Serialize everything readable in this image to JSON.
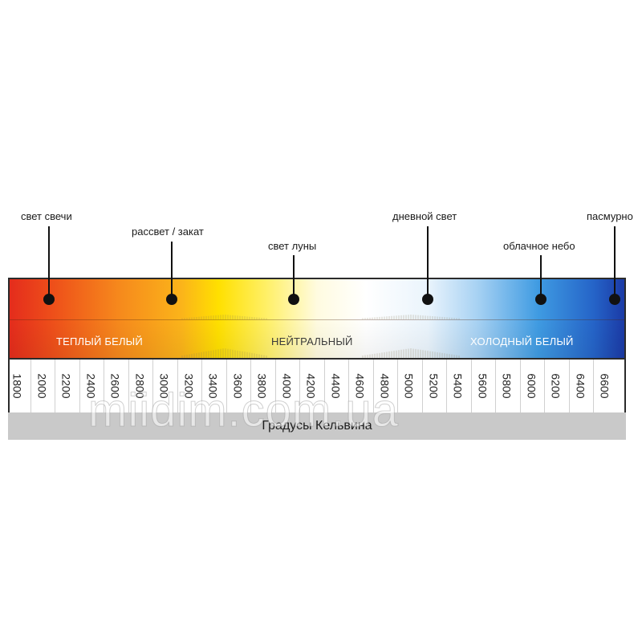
{
  "callouts": [
    {
      "id": "candle",
      "label": "свет свечи"
    },
    {
      "id": "sunrise",
      "label": "рассвет / закат"
    },
    {
      "id": "moon",
      "label": "свет луны"
    },
    {
      "id": "daylight",
      "label": "дневной свет"
    },
    {
      "id": "cloudy",
      "label": "облачное небо"
    },
    {
      "id": "overcast",
      "label": "пасмурно"
    }
  ],
  "zones": {
    "warm": "ТЕПЛЫЙ БЕЛЫЙ",
    "neutral": "НЕЙТРАЛЬНЫЙ",
    "cold": "ХОЛОДНЫЙ БЕЛЫЙ"
  },
  "scale": {
    "ticks": [
      "1800",
      "2000",
      "2200",
      "2400",
      "2600",
      "2800",
      "3000",
      "3200",
      "3400",
      "3600",
      "3800",
      "4000",
      "4200",
      "4400",
      "4600",
      "4800",
      "5000",
      "5200",
      "5400",
      "5600",
      "5800",
      "6000",
      "6200",
      "6400",
      "6600"
    ],
    "unit_caption": "Градусы Кельвина"
  },
  "colors": {
    "candle": "#e8391e",
    "warm": "#f7941d",
    "yellow": "#ffe600",
    "neutral": "#ffffff",
    "cold": "#3d9be0",
    "deep_blue": "#1f3fa8"
  },
  "watermark": "miidim.com.ua"
}
